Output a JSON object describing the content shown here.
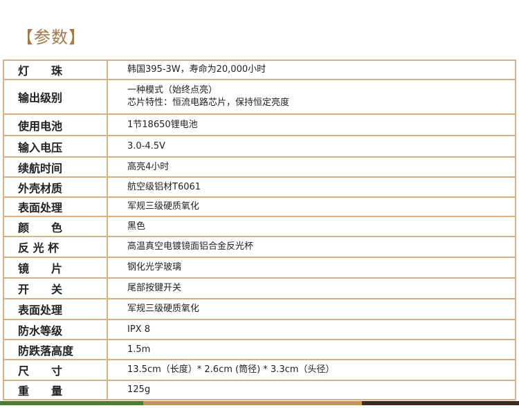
{
  "title": "【参数】",
  "rows": [
    {
      "label": "灯　　珠",
      "value": [
        "韩国395-3W，寿命为20,000小时"
      ]
    },
    {
      "label": "输出级别",
      "value": [
        "一种模式（始终点亮）",
        "芯片特性：恒流电路芯片，保持恒定亮度"
      ]
    },
    {
      "label": "使用电池",
      "value": [
        "1节18650锂电池"
      ]
    },
    {
      "label": "输入电压",
      "value": [
        "3.0-4.5V"
      ]
    },
    {
      "label": "续航时间",
      "value": [
        "高亮4小时"
      ]
    },
    {
      "label": "外壳材质",
      "value": [
        "航空级铝材T6061"
      ]
    },
    {
      "label": "表面处理",
      "value": [
        "军规三级硬质氧化"
      ]
    },
    {
      "label": "颜　　色",
      "value": [
        "黑色"
      ]
    },
    {
      "label": "反 光 杯",
      "value": [
        "高温真空电镀镜面铝合金反光杯"
      ]
    },
    {
      "label": "镜　　片",
      "value": [
        "钢化光学玻璃"
      ]
    },
    {
      "label": "开　　关",
      "value": [
        "尾部按键开关"
      ]
    },
    {
      "label": "表面处理",
      "value": [
        "军规三级硬质氧化"
      ]
    },
    {
      "label": "防水等级",
      "value": [
        "IPX 8"
      ]
    },
    {
      "label": "防跌落高度",
      "value": [
        "1.5m"
      ]
    },
    {
      "label": "尺　　寸",
      "value": [
        "13.5cm（长度）* 2.6cm (筒径) * 3.3cm（头径）"
      ]
    },
    {
      "label": "重　　量",
      "value": [
        "125g"
      ]
    }
  ],
  "colors": {
    "title": "#a47a42",
    "border": "#dcae86",
    "bar": [
      "#4f7a35",
      "#c29556",
      "#3a2a20"
    ]
  }
}
